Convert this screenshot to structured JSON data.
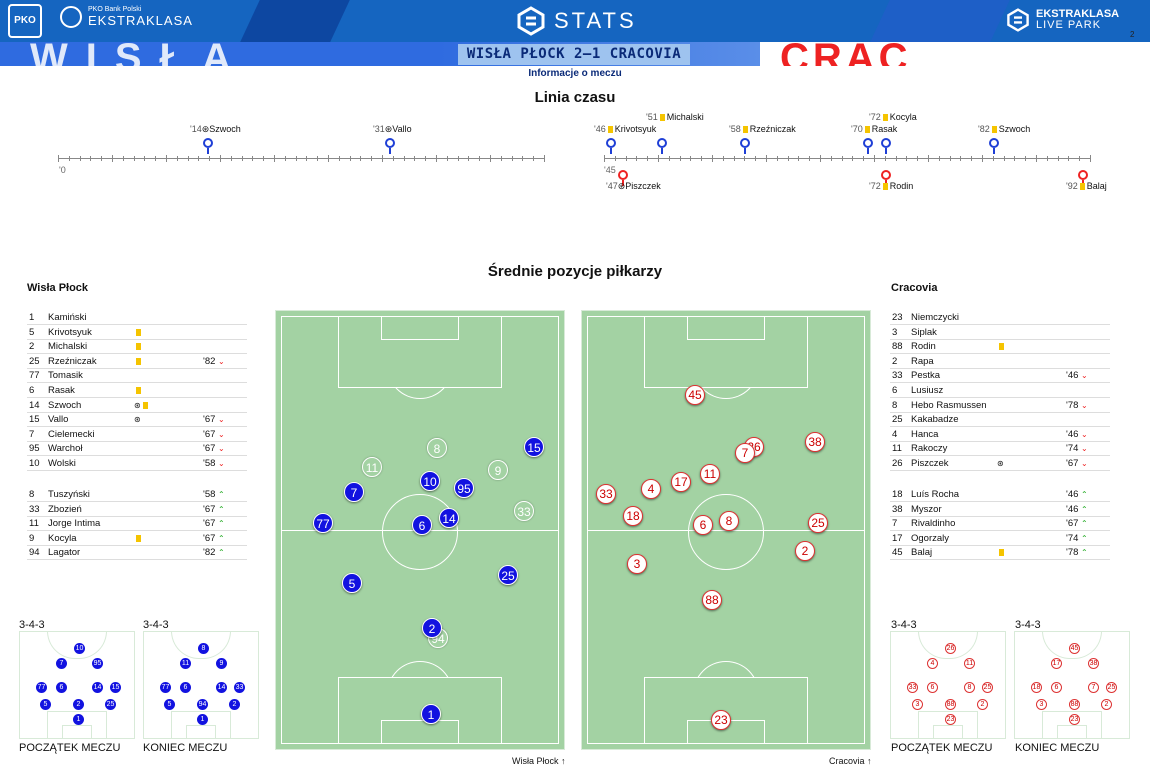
{
  "header": {
    "league_small": "PKO Bank Polski",
    "league": "EKSTRAKLASA",
    "stats": "STATS",
    "live_park_1": "EKSTRAKLASA",
    "live_park_2": "LIVE PARK",
    "page_num": "2",
    "match": "WISŁA PŁOCK 2–1 CRACOVIA",
    "info": "Informacje o meczu"
  },
  "timeline": {
    "title": "Linia czasu",
    "start": "'0",
    "halftime": "'45",
    "top": [
      {
        "min": "'14",
        "icon": "goal",
        "name": "Szwoch"
      },
      {
        "min": "'31",
        "icon": "goal",
        "name": "Vallo"
      },
      {
        "min": "'46",
        "icon": "card",
        "name": "Krivotsyuk"
      },
      {
        "min": "'51",
        "icon": "card",
        "name": "Michalski"
      },
      {
        "min": "'58",
        "icon": "card",
        "name": "Rzeźniczak"
      },
      {
        "min": "'72",
        "icon": "card",
        "name": "Kocyla"
      },
      {
        "min": "'70",
        "icon": "card",
        "name": "Rasak"
      },
      {
        "min": "'82",
        "icon": "card",
        "name": "Szwoch"
      }
    ],
    "bottom": [
      {
        "min": "'47",
        "icon": "goal",
        "name": "Piszczek"
      },
      {
        "min": "'72",
        "icon": "card",
        "name": "Rodin"
      },
      {
        "min": "'92",
        "icon": "card",
        "name": "Balaj"
      }
    ]
  },
  "positions_title": "Średnie pozycje piłkarzy",
  "home": {
    "name": "Wisła Płock",
    "starters": [
      {
        "num": "1",
        "name": "Kamiński",
        "icons": "",
        "sub": ""
      },
      {
        "num": "5",
        "name": "Krivotsyuk",
        "icons": "Y",
        "sub": ""
      },
      {
        "num": "2",
        "name": "Michalski",
        "icons": "Y",
        "sub": ""
      },
      {
        "num": "25",
        "name": "Rzeźniczak",
        "icons": "Y",
        "sub": "'82"
      },
      {
        "num": "77",
        "name": "Tomasik",
        "icons": "",
        "sub": ""
      },
      {
        "num": "6",
        "name": "Rasak",
        "icons": "Y",
        "sub": ""
      },
      {
        "num": "14",
        "name": "Szwoch",
        "icons": "GY",
        "sub": ""
      },
      {
        "num": "15",
        "name": "Vallo",
        "icons": "G",
        "sub": "'67"
      },
      {
        "num": "7",
        "name": "Cielemecki",
        "icons": "",
        "sub": "'67"
      },
      {
        "num": "95",
        "name": "Warchoł",
        "icons": "",
        "sub": "'67"
      },
      {
        "num": "10",
        "name": "Wolski",
        "icons": "",
        "sub": "'58"
      }
    ],
    "subs": [
      {
        "num": "8",
        "name": "Tuszyński",
        "icons": "",
        "sub": "'58"
      },
      {
        "num": "33",
        "name": "Zbozień",
        "icons": "",
        "sub": "'67"
      },
      {
        "num": "11",
        "name": "Jorge Intima",
        "icons": "",
        "sub": "'67"
      },
      {
        "num": "9",
        "name": "Kocyla",
        "icons": "Y",
        "sub": "'67"
      },
      {
        "num": "94",
        "name": "Lagator",
        "icons": "",
        "sub": "'82"
      }
    ],
    "formation_start": "3-4-3",
    "formation_end": "3-4-3",
    "start_label": "POCZĄTEK MECZU",
    "end_label": "KONIEC MECZU",
    "arrow_label": "Wisła Płock"
  },
  "away": {
    "name": "Cracovia",
    "starters": [
      {
        "num": "23",
        "name": "Niemczycki",
        "icons": "",
        "sub": ""
      },
      {
        "num": "3",
        "name": "Siplak",
        "icons": "",
        "sub": ""
      },
      {
        "num": "88",
        "name": "Rodin",
        "icons": "Y",
        "sub": ""
      },
      {
        "num": "2",
        "name": "Rapa",
        "icons": "",
        "sub": ""
      },
      {
        "num": "33",
        "name": "Pestka",
        "icons": "",
        "sub": "'46"
      },
      {
        "num": "6",
        "name": "Lusiusz",
        "icons": "",
        "sub": ""
      },
      {
        "num": "8",
        "name": "Hebo Rasmussen",
        "icons": "",
        "sub": "'78"
      },
      {
        "num": "25",
        "name": "Kakabadze",
        "icons": "",
        "sub": ""
      },
      {
        "num": "4",
        "name": "Hanca",
        "icons": "",
        "sub": "'46"
      },
      {
        "num": "11",
        "name": "Rakoczy",
        "icons": "",
        "sub": "'74"
      },
      {
        "num": "26",
        "name": "Piszczek",
        "icons": "G",
        "sub": "'67"
      }
    ],
    "subs": [
      {
        "num": "18",
        "name": "Luís Rocha",
        "icons": "",
        "sub": "'46"
      },
      {
        "num": "38",
        "name": "Myszor",
        "icons": "",
        "sub": "'46"
      },
      {
        "num": "7",
        "name": "Rivaldinho",
        "icons": "",
        "sub": "'67"
      },
      {
        "num": "17",
        "name": "Ogorzaly",
        "icons": "",
        "sub": "'74"
      },
      {
        "num": "45",
        "name": "Balaj",
        "icons": "Y",
        "sub": "'78"
      }
    ],
    "formation_start": "3-4-3",
    "formation_end": "3-4-3",
    "start_label": "POCZĄTEK MECZU",
    "end_label": "KONIEC MECZU",
    "arrow_label": "Cracovia"
  },
  "colors": {
    "home": "#1212e0",
    "away": "#d33",
    "card": "#f5c400",
    "brand": "#1565c0"
  }
}
